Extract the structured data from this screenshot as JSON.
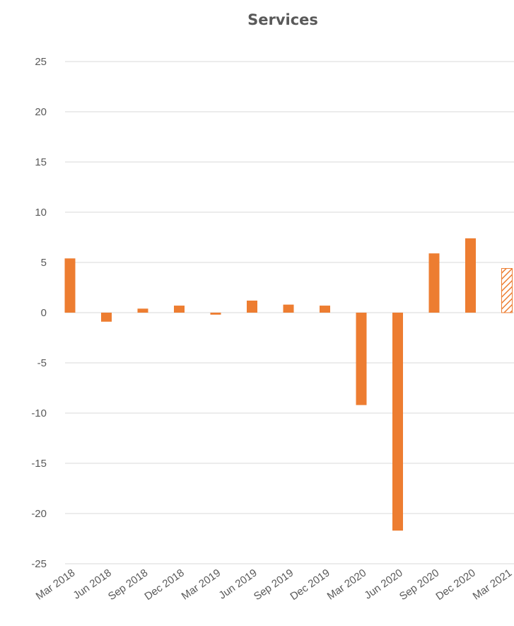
{
  "chart_data": {
    "type": "bar",
    "title": "Services",
    "xlabel": "",
    "ylabel": "",
    "ylim": [
      -25,
      25
    ],
    "yticks": [
      25,
      20,
      15,
      10,
      5,
      0,
      -5,
      -10,
      -15,
      -20,
      -25
    ],
    "grid": true,
    "legend": "none",
    "categories": [
      "Mar 2018",
      "Jun 2018",
      "Sep 2018",
      "Dec 2018",
      "Mar 2019",
      "Jun 2019",
      "Sep 2019",
      "Dec 2019",
      "Mar 2020",
      "Jun 2020",
      "Sep 2020",
      "Dec 2020",
      "Mar 2021"
    ],
    "values": [
      5.4,
      -0.9,
      0.4,
      0.7,
      -0.2,
      1.2,
      0.8,
      0.7,
      -9.2,
      -21.7,
      5.9,
      7.4,
      4.4
    ],
    "hatched": [
      false,
      false,
      false,
      false,
      false,
      false,
      false,
      false,
      false,
      false,
      false,
      false,
      true
    ],
    "colors": {
      "bar": "#ED7D31",
      "grid": "#D9D9D9",
      "text": "#595959"
    }
  }
}
